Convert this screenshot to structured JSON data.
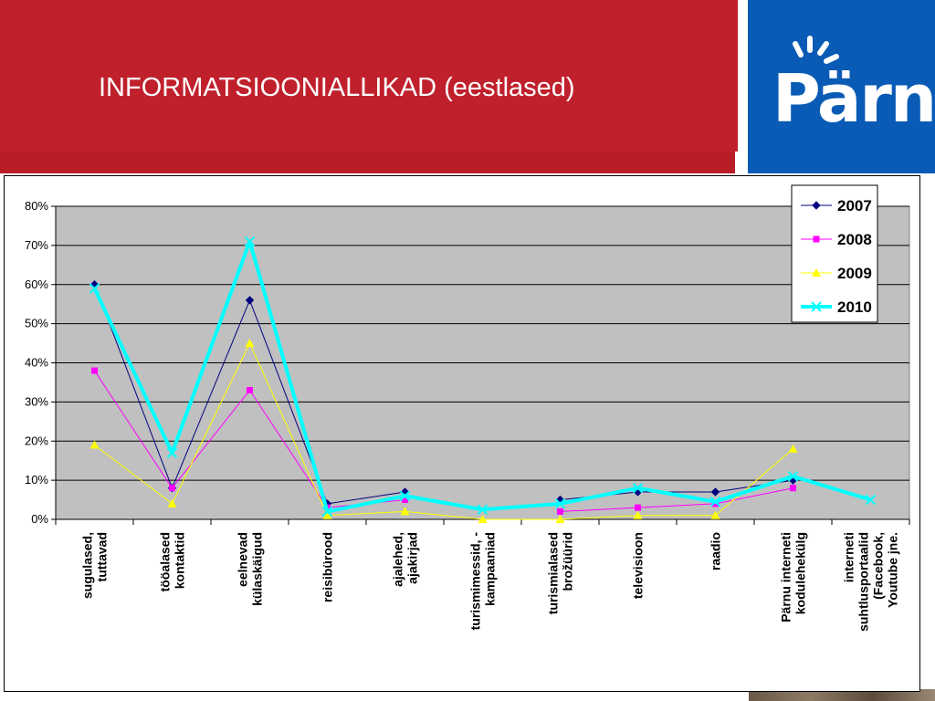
{
  "slide": {
    "title": "INFORMATSIOONIALLIKAD (eestlased)",
    "logo_text": "Pärnu",
    "header_color": "#c0202c",
    "logo_color": "#0a5bb5"
  },
  "chart_data": {
    "type": "line",
    "title": "",
    "xlabel": "",
    "ylabel": "",
    "ylim": [
      0,
      80
    ],
    "yticks": [
      0,
      10,
      20,
      30,
      40,
      50,
      60,
      70,
      80
    ],
    "ytick_labels": [
      "0%",
      "10%",
      "20%",
      "30%",
      "40%",
      "50%",
      "60%",
      "70%",
      "80%"
    ],
    "grid": "horizontal",
    "plot_background": "#c0c0c0",
    "legend_position": "top-right",
    "categories": [
      [
        "sugulased,",
        "tuttavad"
      ],
      [
        "tööalased",
        "kontaktid"
      ],
      [
        "eelnevad",
        "külaskäigud"
      ],
      [
        "reisibürood"
      ],
      [
        "ajalehed,",
        "ajakirjad"
      ],
      [
        "turismimessid, -",
        "kampaaniad"
      ],
      [
        "turismialased",
        "brožüürid"
      ],
      [
        "televisioon"
      ],
      [
        "raadio"
      ],
      [
        "Pärnu interneti",
        "kodulehekülg"
      ],
      [
        "interneti",
        "suhtlusportaalid",
        "(Facebook,",
        "Youtube jne."
      ]
    ],
    "series": [
      {
        "name": "2007",
        "color": "#000080",
        "marker": "diamond",
        "width": 1,
        "values": [
          60,
          8,
          56,
          4,
          7,
          null,
          5,
          7,
          7,
          10,
          null
        ]
      },
      {
        "name": "2008",
        "color": "#ff00ff",
        "marker": "square",
        "width": 1,
        "values": [
          38,
          8,
          33,
          3,
          5,
          null,
          2,
          3,
          4,
          8,
          null
        ]
      },
      {
        "name": "2009",
        "color": "#ffff00",
        "marker": "triangle",
        "width": 1,
        "values": [
          19,
          4,
          45,
          1,
          2,
          0,
          0,
          1,
          1,
          18,
          null
        ]
      },
      {
        "name": "2010",
        "color": "#00ffff",
        "marker": "x",
        "width": 4,
        "values": [
          59,
          17,
          71,
          2,
          6,
          2.5,
          4,
          8,
          4.5,
          11,
          5
        ]
      }
    ]
  }
}
